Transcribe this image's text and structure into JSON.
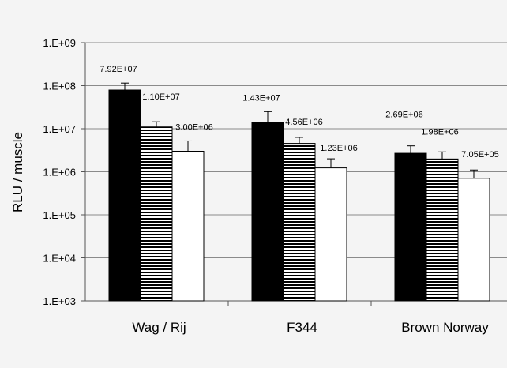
{
  "chart_data": {
    "type": "bar",
    "ylabel": "RLU / muscle",
    "yscale": "log",
    "ylim": [
      1000,
      1000000000
    ],
    "yticks": [
      "1.E+03",
      "1.E+04",
      "1.E+05",
      "1.E+06",
      "1.E+07",
      "1.E+08",
      "1.E+09"
    ],
    "ytick_values": [
      1000,
      10000,
      100000,
      1000000,
      10000000,
      100000000,
      1000000000
    ],
    "grid": true,
    "categories": [
      "Wag / Rij",
      "F344",
      "Brown Norway"
    ],
    "series": [
      {
        "fill": "#000000",
        "pattern": "solid",
        "values": [
          79200000,
          14300000,
          2690000
        ],
        "labels": [
          "7.92E+07",
          "1.43E+07",
          "2.69E+06"
        ],
        "error_upper": [
          115000000,
          25000000,
          4000000
        ]
      },
      {
        "fill": "#ffffff",
        "pattern": "horizontal-stripes",
        "values": [
          11000000,
          4560000,
          1980000
        ],
        "labels": [
          "1.10E+07",
          "4.56E+06",
          "1.98E+06"
        ],
        "error_upper": [
          14500000,
          6300000,
          2900000
        ]
      },
      {
        "fill": "#ffffff",
        "pattern": "solid",
        "values": [
          3000000,
          1230000,
          705000
        ],
        "labels": [
          "3.00E+06",
          "1.23E+06",
          "7.05E+05"
        ],
        "error_upper": [
          5200000,
          2000000,
          1100000
        ]
      }
    ]
  }
}
